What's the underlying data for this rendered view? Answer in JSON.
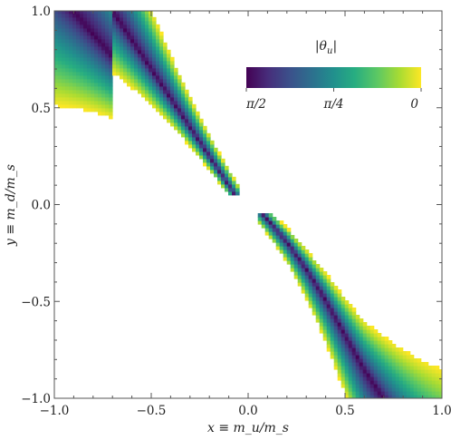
{
  "chart_data": {
    "type": "heatmap",
    "title": "",
    "xlabel": "x ≡ m_u/m_s",
    "ylabel": "y ≡ m_d/m_s",
    "xlim": [
      -1.0,
      1.0
    ],
    "ylim": [
      -1.0,
      1.0
    ],
    "x_ticks": [
      -1.0,
      -0.5,
      0.0,
      0.5,
      1.0
    ],
    "y_ticks": [
      -1.0,
      -0.5,
      0.0,
      0.5,
      1.0
    ],
    "x_tick_labels": [
      "−1.0",
      "−0.5",
      "0.0",
      "0.5",
      "1.0"
    ],
    "y_tick_labels": [
      "−1.0",
      "−0.5",
      "0.0",
      "0.5",
      "1.0"
    ],
    "grid": false,
    "colorbar": {
      "label": "|θu|",
      "label_text": "|θ",
      "label_sub": "u",
      "label_close": "|",
      "range": [
        1.5708,
        0
      ],
      "tick_values": [
        1.5708,
        0.7854,
        0
      ],
      "tick_labels": [
        "π/2",
        "π/4",
        "0"
      ],
      "placement": "top-right",
      "colormap": "viridis"
    },
    "regions": [
      {
        "name": "upper-left lobe",
        "x_range": [
          -1.0,
          -0.05
        ],
        "y_range": [
          0.05,
          1.0
        ],
        "center_line_x": [
          -0.7,
          -0.6,
          -0.5,
          -0.4,
          -0.3,
          -0.2,
          -0.1
        ],
        "center_line_y": [
          1.0,
          0.85,
          0.67,
          0.49,
          0.33,
          0.19,
          0.075
        ],
        "center_value": 1.5708,
        "edge_value": 0
      },
      {
        "name": "lower-right lobe",
        "x_range": [
          0.05,
          1.0
        ],
        "y_range": [
          -1.0,
          -0.05
        ],
        "center_line_x": [
          0.1,
          0.2,
          0.3,
          0.4,
          0.5,
          0.6,
          0.7
        ],
        "center_line_y": [
          -0.075,
          -0.19,
          -0.33,
          -0.49,
          -0.67,
          -0.85,
          -1.0
        ],
        "center_value": 1.5708,
        "edge_value": 0
      }
    ]
  }
}
